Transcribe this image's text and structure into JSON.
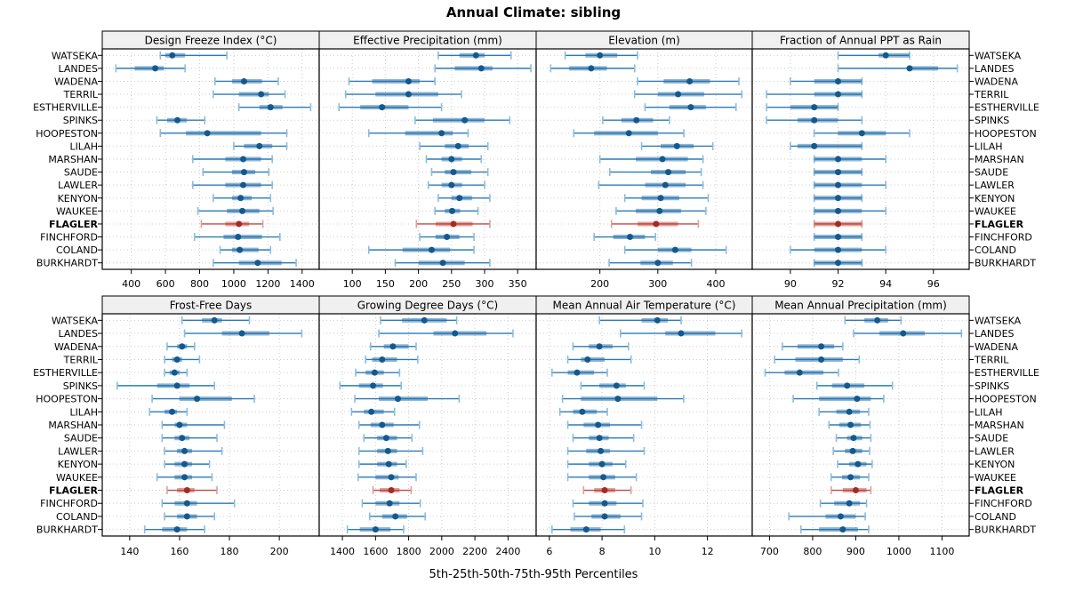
{
  "title": "Annual Climate: sibling",
  "caption": "5th-25th-50th-75th-95th Percentiles",
  "sites": [
    "WATSEKA",
    "LANDES",
    "WADENA",
    "TERRIL",
    "ESTHERVILLE",
    "SPINKS",
    "HOOPESTON",
    "LILAH",
    "MARSHAN",
    "SAUDE",
    "LAWLER",
    "KENYON",
    "WAUKEE",
    "FLAGLER",
    "FINCHFORD",
    "COLAND",
    "BURKHARDT"
  ],
  "highlight_site": "FLAGLER",
  "colors": {
    "series_line": "#2b7bb9",
    "series_dot": "#14598e",
    "series_box": "rgba(31,108,167,0.5)",
    "series_cap": "#8cbcdc",
    "highlight_line": "#c14743",
    "highlight_dot": "#a52a21",
    "highlight_box": "rgba(185,50,40,0.45)",
    "highlight_cap": "#dba09b",
    "strip_bg": "#f0f0f0",
    "grid": "#cccccc",
    "border": "#000000"
  },
  "chart_data": [
    {
      "type": "dotplot-percentiles",
      "title": "Design Freeze Index (°C)",
      "row": 0,
      "col": 0,
      "xlim": [
        230,
        1500
      ],
      "ticks": [
        400,
        600,
        800,
        1000,
        1200,
        1400
      ],
      "grid": true,
      "values": [
        [
          570,
          600,
          640,
          715,
          960
        ],
        [
          310,
          420,
          540,
          590,
          715
        ],
        [
          890,
          990,
          1060,
          1165,
          1260
        ],
        [
          880,
          1030,
          1160,
          1205,
          1300
        ],
        [
          1030,
          1150,
          1215,
          1285,
          1450
        ],
        [
          550,
          610,
          670,
          725,
          830
        ],
        [
          570,
          720,
          845,
          1160,
          1310
        ],
        [
          1000,
          1060,
          1150,
          1225,
          1310
        ],
        [
          760,
          950,
          1055,
          1160,
          1225
        ],
        [
          820,
          990,
          1060,
          1125,
          1205
        ],
        [
          760,
          950,
          1055,
          1160,
          1225
        ],
        [
          880,
          990,
          1040,
          1105,
          1215
        ],
        [
          790,
          960,
          1050,
          1150,
          1230
        ],
        [
          810,
          950,
          1030,
          1090,
          1170
        ],
        [
          770,
          940,
          1025,
          1165,
          1270
        ],
        [
          920,
          990,
          1035,
          1145,
          1215
        ],
        [
          880,
          1030,
          1140,
          1280,
          1365
        ]
      ]
    },
    {
      "type": "dotplot-percentiles",
      "title": "Effective Precipitation (mm)",
      "row": 0,
      "col": 1,
      "xlim": [
        50,
        378
      ],
      "ticks": [
        100,
        150,
        200,
        250,
        300,
        350
      ],
      "grid": true,
      "values": [
        [
          230,
          262,
          287,
          300,
          340
        ],
        [
          225,
          255,
          295,
          312,
          370
        ],
        [
          95,
          130,
          185,
          202,
          225
        ],
        [
          90,
          135,
          185,
          230,
          265
        ],
        [
          80,
          112,
          145,
          185,
          235
        ],
        [
          195,
          222,
          270,
          300,
          338
        ],
        [
          125,
          180,
          235,
          252,
          275
        ],
        [
          202,
          240,
          260,
          276,
          305
        ],
        [
          212,
          235,
          250,
          266,
          295
        ],
        [
          220,
          240,
          253,
          280,
          305
        ],
        [
          215,
          235,
          250,
          266,
          300
        ],
        [
          230,
          250,
          262,
          281,
          308
        ],
        [
          225,
          240,
          251,
          263,
          290
        ],
        [
          197,
          226,
          253,
          282,
          308
        ],
        [
          202,
          226,
          243,
          262,
          284
        ],
        [
          125,
          176,
          220,
          248,
          284
        ],
        [
          165,
          200,
          237,
          270,
          308
        ]
      ]
    },
    {
      "type": "dotplot-percentiles",
      "title": "Elevation (m)",
      "row": 0,
      "col": 2,
      "xlim": [
        90,
        463
      ],
      "ticks": [
        200,
        300,
        400
      ],
      "grid": true,
      "values": [
        [
          140,
          175,
          200,
          230,
          265
        ],
        [
          115,
          147,
          185,
          212,
          260
        ],
        [
          265,
          310,
          355,
          390,
          440
        ],
        [
          260,
          300,
          335,
          380,
          445
        ],
        [
          278,
          320,
          357,
          383,
          435
        ],
        [
          205,
          237,
          263,
          292,
          320
        ],
        [
          155,
          190,
          250,
          300,
          345
        ],
        [
          272,
          305,
          333,
          362,
          395
        ],
        [
          200,
          262,
          308,
          352,
          378
        ],
        [
          217,
          288,
          318,
          348,
          375
        ],
        [
          198,
          278,
          313,
          348,
          378
        ],
        [
          243,
          272,
          305,
          337,
          387
        ],
        [
          228,
          262,
          303,
          340,
          383
        ],
        [
          220,
          265,
          297,
          335,
          370
        ],
        [
          190,
          223,
          252,
          278,
          296
        ],
        [
          243,
          300,
          330,
          358,
          418
        ],
        [
          216,
          270,
          300,
          326,
          358
        ]
      ]
    },
    {
      "type": "dotplot-percentiles",
      "title": "Fraction of Annual PPT as Rain",
      "row": 0,
      "col": 3,
      "xlim": [
        88.4,
        97.5
      ],
      "ticks": [
        90,
        92,
        94,
        96
      ],
      "grid": true,
      "values": [
        [
          92,
          93.7,
          94,
          95,
          95
        ],
        [
          92,
          94.9,
          95,
          96.2,
          97
        ],
        [
          90,
          91,
          92,
          93,
          93
        ],
        [
          89,
          91,
          92,
          93,
          93
        ],
        [
          89,
          90,
          91,
          92,
          92
        ],
        [
          89,
          90.3,
          91,
          92,
          93
        ],
        [
          91,
          92,
          93,
          94,
          95
        ],
        [
          90,
          90.3,
          91,
          93,
          93
        ],
        [
          91,
          91,
          92,
          93,
          94
        ],
        [
          91,
          91,
          92,
          93,
          93
        ],
        [
          91,
          91,
          92,
          93,
          94
        ],
        [
          91,
          91,
          92,
          93,
          93
        ],
        [
          91,
          91,
          92,
          93,
          94
        ],
        [
          91,
          91,
          92,
          93,
          93
        ],
        [
          91,
          91,
          92,
          93,
          93
        ],
        [
          90,
          91,
          92,
          93,
          94
        ],
        [
          91,
          91,
          92,
          93,
          93
        ]
      ]
    },
    {
      "type": "dotplot-percentiles",
      "title": "Frost-Free Days",
      "row": 1,
      "col": 0,
      "xlim": [
        129,
        216
      ],
      "ticks": [
        140,
        160,
        180,
        200
      ],
      "grid": true,
      "values": [
        [
          161,
          169,
          174,
          177,
          188
        ],
        [
          162,
          177,
          185,
          196,
          209
        ],
        [
          155,
          159,
          161,
          163,
          166
        ],
        [
          154,
          157,
          159,
          161,
          168
        ],
        [
          154,
          156,
          158,
          160,
          163
        ],
        [
          135,
          151,
          159,
          164,
          174
        ],
        [
          149,
          160,
          167,
          181,
          190
        ],
        [
          148,
          154,
          157,
          159,
          163
        ],
        [
          153,
          158,
          160,
          163,
          178
        ],
        [
          153,
          158,
          161,
          164,
          175
        ],
        [
          154,
          159,
          162,
          165,
          177
        ],
        [
          154,
          158,
          162,
          165,
          172
        ],
        [
          151,
          158,
          162,
          165,
          173
        ],
        [
          155,
          159,
          163,
          166,
          175
        ],
        [
          153,
          158,
          163,
          167,
          182
        ],
        [
          154,
          159,
          163,
          167,
          174
        ],
        [
          146,
          153,
          159,
          163,
          170
        ]
      ]
    },
    {
      "type": "dotplot-percentiles",
      "title": "Growing Degree Days (°C)",
      "row": 1,
      "col": 1,
      "xlim": [
        1260,
        2570
      ],
      "ticks": [
        1400,
        1600,
        1800,
        2000,
        2200,
        2400
      ],
      "grid": true,
      "values": [
        [
          1630,
          1760,
          1895,
          2030,
          2090
        ],
        [
          1620,
          1950,
          2080,
          2270,
          2430
        ],
        [
          1570,
          1650,
          1705,
          1800,
          1845
        ],
        [
          1540,
          1580,
          1640,
          1730,
          1855
        ],
        [
          1480,
          1540,
          1595,
          1650,
          1745
        ],
        [
          1385,
          1500,
          1585,
          1645,
          1755
        ],
        [
          1475,
          1620,
          1735,
          1915,
          2105
        ],
        [
          1455,
          1530,
          1575,
          1650,
          1715
        ],
        [
          1500,
          1570,
          1640,
          1710,
          1865
        ],
        [
          1530,
          1610,
          1665,
          1730,
          1820
        ],
        [
          1500,
          1610,
          1675,
          1730,
          1885
        ],
        [
          1500,
          1610,
          1680,
          1730,
          1785
        ],
        [
          1495,
          1600,
          1695,
          1740,
          1845
        ],
        [
          1585,
          1625,
          1695,
          1745,
          1815
        ],
        [
          1520,
          1600,
          1685,
          1745,
          1870
        ],
        [
          1565,
          1640,
          1720,
          1790,
          1900
        ],
        [
          1430,
          1505,
          1600,
          1690,
          1770
        ]
      ]
    },
    {
      "type": "dotplot-percentiles",
      "title": "Mean Annual Air Temperature (°C)",
      "row": 1,
      "col": 2,
      "xlim": [
        5.5,
        13.7
      ],
      "ticks": [
        6,
        8,
        10,
        12
      ],
      "grid": true,
      "values": [
        [
          7.9,
          9.5,
          10.1,
          10.5,
          11.0
        ],
        [
          8.7,
          10.4,
          11.0,
          12.3,
          13.3
        ],
        [
          6.9,
          7.5,
          7.9,
          8.4,
          9.0
        ],
        [
          6.7,
          7.2,
          7.45,
          8.1,
          9.1
        ],
        [
          6.1,
          6.7,
          7.05,
          7.7,
          8.2
        ],
        [
          7.2,
          7.9,
          8.55,
          8.9,
          9.6
        ],
        [
          6.5,
          7.2,
          8.6,
          10.1,
          11.1
        ],
        [
          6.4,
          6.9,
          7.25,
          7.8,
          8.2
        ],
        [
          6.7,
          7.3,
          7.85,
          8.3,
          9.5
        ],
        [
          6.9,
          7.5,
          7.9,
          8.25,
          9.2
        ],
        [
          6.7,
          7.4,
          7.95,
          8.3,
          9.6
        ],
        [
          6.7,
          7.5,
          8.0,
          8.4,
          8.9
        ],
        [
          6.7,
          7.5,
          8.05,
          8.5,
          9.3
        ],
        [
          7.3,
          7.7,
          8.1,
          8.5,
          9.1
        ],
        [
          6.9,
          7.5,
          8.1,
          8.55,
          9.55
        ],
        [
          6.95,
          7.6,
          8.1,
          8.7,
          9.5
        ],
        [
          6.1,
          6.8,
          7.4,
          7.95,
          8.85
        ]
      ]
    },
    {
      "type": "dotplot-percentiles",
      "title": "Mean Annual Precipitation (mm)",
      "row": 1,
      "col": 3,
      "xlim": [
        660,
        1163
      ],
      "ticks": [
        700,
        800,
        900,
        1000,
        1100
      ],
      "grid": true,
      "values": [
        [
          875,
          920,
          950,
          975,
          1005
        ],
        [
          895,
          955,
          1010,
          1060,
          1145
        ],
        [
          730,
          765,
          820,
          850,
          870
        ],
        [
          712,
          760,
          820,
          870,
          908
        ],
        [
          690,
          735,
          770,
          825,
          860
        ],
        [
          810,
          845,
          880,
          920,
          985
        ],
        [
          755,
          815,
          903,
          935,
          965
        ],
        [
          815,
          855,
          885,
          910,
          930
        ],
        [
          838,
          862,
          888,
          912,
          933
        ],
        [
          855,
          880,
          895,
          915,
          935
        ],
        [
          848,
          875,
          893,
          915,
          932
        ],
        [
          858,
          885,
          905,
          925,
          938
        ],
        [
          843,
          868,
          888,
          910,
          930
        ],
        [
          843,
          870,
          900,
          925,
          935
        ],
        [
          818,
          850,
          885,
          910,
          925
        ],
        [
          745,
          830,
          865,
          900,
          922
        ],
        [
          773,
          815,
          870,
          905,
          930
        ]
      ]
    }
  ]
}
